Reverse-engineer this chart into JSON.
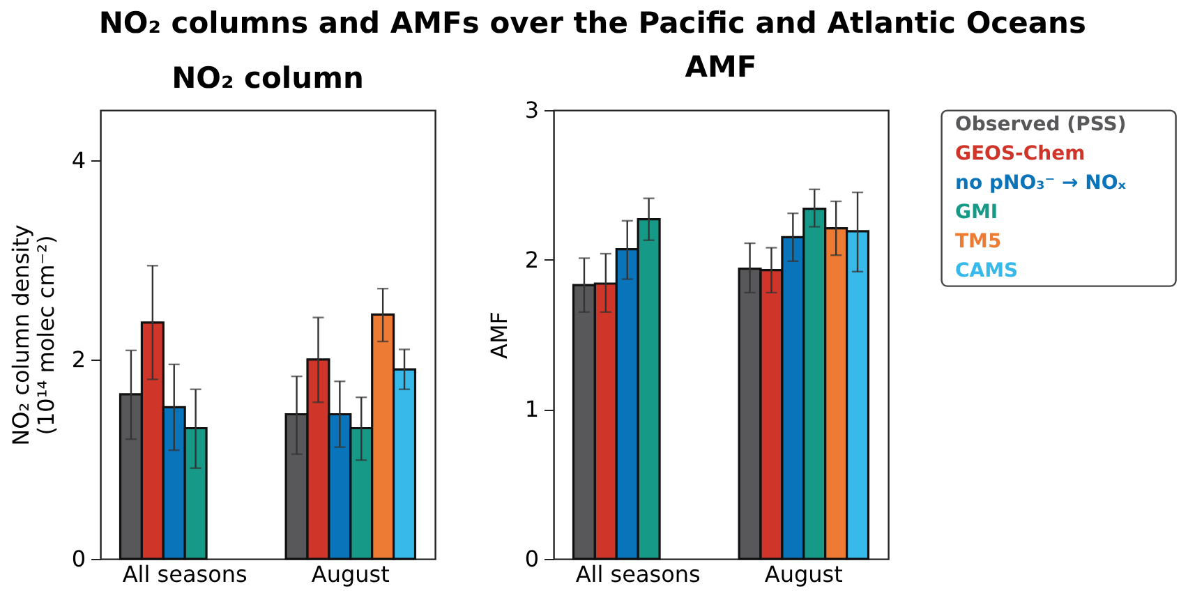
{
  "chart_data": [
    {
      "type": "bar",
      "title": "NO₂ column",
      "annotations": [
        "NO₂ columns and AMFs over the Pacific and Atlantic Oceans"
      ],
      "ylabel": "NO₂ column density\n(10¹⁴ molec cm⁻²)",
      "categories": [
        "All seasons",
        "August"
      ],
      "ylim": [
        0,
        4.5
      ],
      "yticks": [
        0,
        2,
        4
      ],
      "legend": false,
      "series": [
        {
          "color": "#58585a",
          "values": [
            1.65,
            1.45
          ],
          "errors": [
            [
              1.2,
              2.09
            ],
            [
              1.05,
              1.83
            ]
          ]
        },
        {
          "color": "#cf3629",
          "values": [
            2.37,
            2.0
          ],
          "errors": [
            [
              1.8,
              2.94
            ],
            [
              1.57,
              2.42
            ]
          ]
        },
        {
          "color": "#0a74bb",
          "values": [
            1.52,
            1.45
          ],
          "errors": [
            [
              1.09,
              1.95
            ],
            [
              1.12,
              1.78
            ]
          ]
        },
        {
          "color": "#169a87",
          "values": [
            1.31,
            1.31
          ],
          "errors": [
            [
              0.91,
              1.7
            ],
            [
              0.99,
              1.62
            ]
          ]
        },
        {
          "color": "#ee7b33",
          "values": [
            null,
            2.45
          ],
          "errors": [
            null,
            [
              2.18,
              2.71
            ]
          ]
        },
        {
          "color": "#37b9ea",
          "values": [
            null,
            1.9
          ],
          "errors": [
            null,
            [
              1.7,
              2.1
            ]
          ]
        }
      ]
    },
    {
      "type": "bar",
      "title": "AMF",
      "ylabel": "AMF",
      "categories": [
        "All seasons",
        "August"
      ],
      "ylim": [
        0,
        3
      ],
      "yticks": [
        0,
        1,
        2,
        3
      ],
      "legend": "right",
      "series": [
        {
          "name": "Observed (PSS)",
          "color": "#58585a",
          "values": [
            1.83,
            1.94
          ],
          "errors": [
            [
              1.65,
              2.01
            ],
            [
              1.78,
              2.11
            ]
          ]
        },
        {
          "name": "GEOS-Chem",
          "color": "#cf3629",
          "values": [
            1.84,
            1.93
          ],
          "errors": [
            [
              1.65,
              2.04
            ],
            [
              1.78,
              2.08
            ]
          ]
        },
        {
          "name": "no pNO₃⁻ → NOₓ",
          "color": "#0a74bb",
          "values": [
            2.07,
            2.15
          ],
          "errors": [
            [
              1.87,
              2.26
            ],
            [
              1.99,
              2.31
            ]
          ]
        },
        {
          "name": "GMI",
          "color": "#169a87",
          "values": [
            2.27,
            2.34
          ],
          "errors": [
            [
              2.13,
              2.41
            ],
            [
              2.22,
              2.47
            ]
          ]
        },
        {
          "name": "TM5",
          "color": "#ee7b33",
          "values": [
            null,
            2.21
          ],
          "errors": [
            null,
            [
              2.03,
              2.39
            ]
          ]
        },
        {
          "name": "CAMS",
          "color": "#37b9ea",
          "values": [
            null,
            2.19
          ],
          "errors": [
            null,
            [
              1.92,
              2.45
            ]
          ]
        }
      ]
    }
  ]
}
